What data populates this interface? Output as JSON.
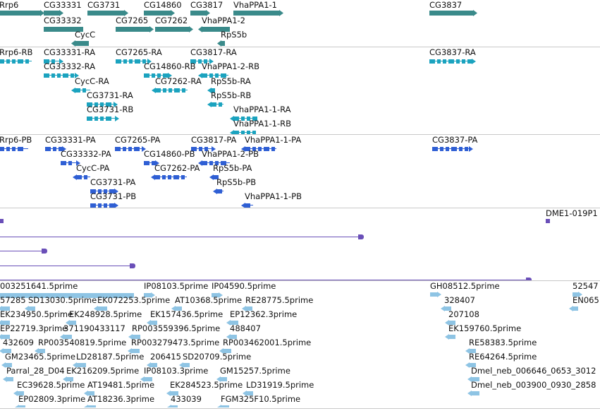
{
  "colors": {
    "gene": "#3a8a8a",
    "transcript": "#1ba3bf",
    "protein": "#2f5fd4",
    "match": "#6a4fb8",
    "est": "#8ec4e4",
    "divider": "#c8c8c8"
  },
  "tracks": {
    "genes": {
      "features": [
        {
          "label": "Rrp6",
          "glyph": "box"
        },
        {
          "label": "CG33331",
          "glyph": "box"
        },
        {
          "label": "CG3731",
          "glyph": "box"
        },
        {
          "label": "CG14860",
          "glyph": "box"
        },
        {
          "label": "CG3817",
          "glyph": "box"
        },
        {
          "label": "VhaPPA1-1",
          "glyph": "box"
        },
        {
          "label": "CG3837",
          "glyph": "box"
        },
        {
          "label": "CG33332",
          "glyph": "box"
        },
        {
          "label": "CG7265",
          "glyph": "box"
        },
        {
          "label": "CG7262",
          "glyph": "box"
        },
        {
          "label": "VhaPPA1-2",
          "glyph": "box"
        },
        {
          "label": "CycC",
          "glyph": "box"
        },
        {
          "label": "RpS5b",
          "glyph": "box"
        }
      ]
    },
    "transcripts": {
      "features": [
        {
          "label": "Rrp6-RB",
          "glyph": "exons"
        },
        {
          "label": "CG33331-RA",
          "glyph": "exons"
        },
        {
          "label": "CG7265-RA",
          "glyph": "exons"
        },
        {
          "label": "CG3817-RA",
          "glyph": "exons"
        },
        {
          "label": "CG3837-RA",
          "glyph": "exons"
        },
        {
          "label": "CG33332-RA",
          "glyph": "exons"
        },
        {
          "label": "CG14860-RB",
          "glyph": "exons"
        },
        {
          "label": "VhaPPA1-2-RB",
          "glyph": "exons"
        },
        {
          "label": "CycC-RA",
          "glyph": "exons"
        },
        {
          "label": "CG7262-RA",
          "glyph": "exons"
        },
        {
          "label": "RpS5b-RA",
          "glyph": "exons"
        },
        {
          "label": "CG3731-RA",
          "glyph": "exons"
        },
        {
          "label": "RpS5b-RB",
          "glyph": "exons"
        },
        {
          "label": "CG3731-RB",
          "glyph": "exons"
        },
        {
          "label": "VhaPPA1-1-RA",
          "glyph": "exons"
        },
        {
          "label": "VhaPPA1-1-RB",
          "glyph": "exons"
        }
      ]
    },
    "proteins": {
      "features": [
        {
          "label": "Rrp6-PB",
          "glyph": "exons"
        },
        {
          "label": "CG33331-PA",
          "glyph": "exons"
        },
        {
          "label": "CG7265-PA",
          "glyph": "exons"
        },
        {
          "label": "CG3817-PA",
          "glyph": "exons"
        },
        {
          "label": "VhaPPA1-1-PA",
          "glyph": "exons"
        },
        {
          "label": "CG3837-PA",
          "glyph": "exons"
        },
        {
          "label": "CG33332-PA",
          "glyph": "exons"
        },
        {
          "label": "CG14860-PB",
          "glyph": "exons"
        },
        {
          "label": "VhaPPA1-2-PB",
          "glyph": "exons"
        },
        {
          "label": "CycC-PA",
          "glyph": "exons"
        },
        {
          "label": "CG7262-PA",
          "glyph": "exons"
        },
        {
          "label": "RpS5b-PA",
          "glyph": "exons"
        },
        {
          "label": "CG3731-PA",
          "glyph": "exons"
        },
        {
          "label": "RpS5b-PB",
          "glyph": "exons"
        },
        {
          "label": "CG3731-PB",
          "glyph": "exons"
        },
        {
          "label": "VhaPPA1-1-PB",
          "glyph": "exons"
        }
      ]
    },
    "matches": {
      "features": [
        {
          "label": "",
          "glyph": "square"
        },
        {
          "label": "DME1-019P1",
          "glyph": "square"
        },
        {
          "label": "",
          "glyph": "line"
        },
        {
          "label": "",
          "glyph": "line"
        },
        {
          "label": "",
          "glyph": "line"
        },
        {
          "label": "",
          "glyph": "line"
        }
      ]
    },
    "ests": {
      "features": [
        {
          "label": "003251641.5prime",
          "glyph": "bar"
        },
        {
          "label": "IP08103.5prime",
          "glyph": "arrow"
        },
        {
          "label": "IP04590.5prime",
          "glyph": "arrow"
        },
        {
          "label": "GH08512.5prime",
          "glyph": "arrow"
        },
        {
          "label": "52547",
          "glyph": "arrow"
        },
        {
          "label": "57285",
          "glyph": "arrow"
        },
        {
          "label": "SD13030.5prime",
          "glyph": "arrow"
        },
        {
          "label": "EK072253.5prime",
          "glyph": "arrow"
        },
        {
          "label": "AT10368.5prime",
          "glyph": "arrow"
        },
        {
          "label": "RE28775.5prime",
          "glyph": "arrow"
        },
        {
          "label": "328407",
          "glyph": "arrow"
        },
        {
          "label": "EN065",
          "glyph": "arrow"
        },
        {
          "label": "EK234950.5prime",
          "glyph": "arrow"
        },
        {
          "label": "EK248928.5prime",
          "glyph": "arrow"
        },
        {
          "label": "EK157436.5prime",
          "glyph": "arrow"
        },
        {
          "label": "EP12362.3prime",
          "glyph": "arrow"
        },
        {
          "label": "207108",
          "glyph": "arrow"
        },
        {
          "label": "EP22719.3prime",
          "glyph": "arrow"
        },
        {
          "label": "371190433117",
          "glyph": "arrow"
        },
        {
          "label": "RP003559396.5prime",
          "glyph": "arrow"
        },
        {
          "label": "488407",
          "glyph": "arrow"
        },
        {
          "label": "EK159760.5prime",
          "glyph": "arrow"
        },
        {
          "label": "432609",
          "glyph": "arrow"
        },
        {
          "label": "RP003540819.5prime",
          "glyph": "arrow"
        },
        {
          "label": "RP003279473.5prime",
          "glyph": "arrow"
        },
        {
          "label": "RP003462001.5prime",
          "glyph": "arrow"
        },
        {
          "label": "RE58383.5prime",
          "glyph": "arrow"
        },
        {
          "label": "GM23465.5prime",
          "glyph": "arrow"
        },
        {
          "label": "LD28187.5prime",
          "glyph": "arrow"
        },
        {
          "label": "206415",
          "glyph": "arrow"
        },
        {
          "label": "SD20709.5prime",
          "glyph": "arrow"
        },
        {
          "label": "RE64264.5prime",
          "glyph": "arrow"
        },
        {
          "label": "Parral_28_D04",
          "glyph": "arrow"
        },
        {
          "label": "EK216209.5prime",
          "glyph": "arrow"
        },
        {
          "label": "IP08103.3prime",
          "glyph": "arrow"
        },
        {
          "label": "GM15257.5prime",
          "glyph": "arrow"
        },
        {
          "label": "Dmel_neb_006646_0653_3012",
          "glyph": "arrow"
        },
        {
          "label": "EC39628.5prime",
          "glyph": "arrow"
        },
        {
          "label": "AT19481.5prime",
          "glyph": "arrow"
        },
        {
          "label": "EK284523.5prime",
          "glyph": "arrow"
        },
        {
          "label": "LD31919.5prime",
          "glyph": "arrow"
        },
        {
          "label": "Dmel_neb_003900_0930_2858",
          "glyph": "arrow"
        },
        {
          "label": "EP02809.3prime",
          "glyph": "arrow"
        },
        {
          "label": "AT18236.3prime",
          "glyph": "arrow"
        },
        {
          "label": "433039",
          "glyph": "arrow"
        },
        {
          "label": "FGM325F10.5prime",
          "glyph": "arrow"
        }
      ]
    }
  }
}
